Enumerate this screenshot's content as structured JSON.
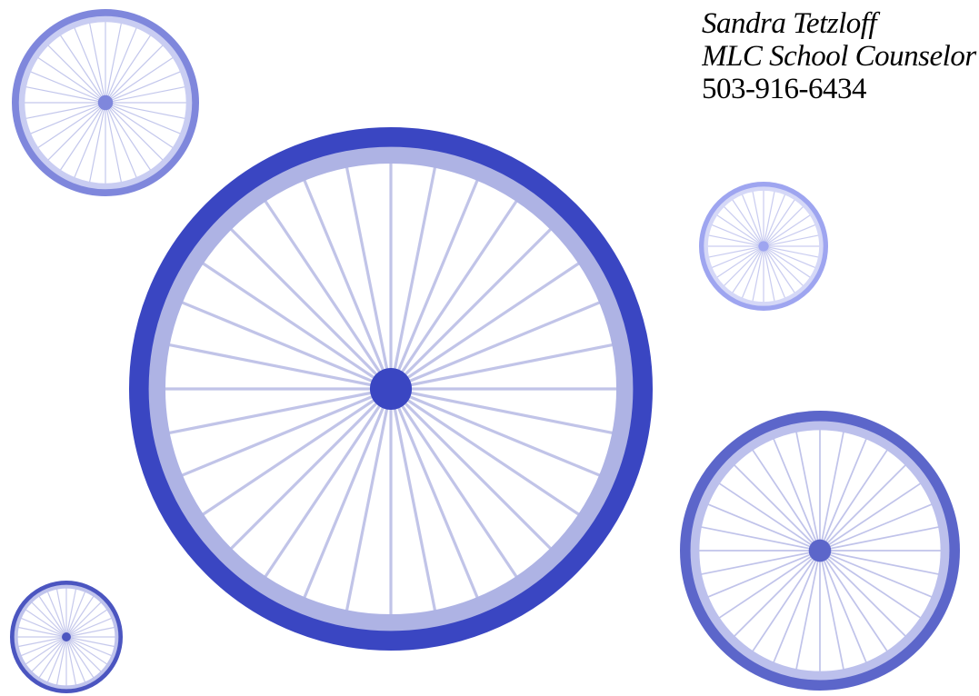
{
  "contact": {
    "name": "Sandra Tetzloff",
    "role": "MLC School Counselor",
    "phone": "503-916-6434"
  }
}
